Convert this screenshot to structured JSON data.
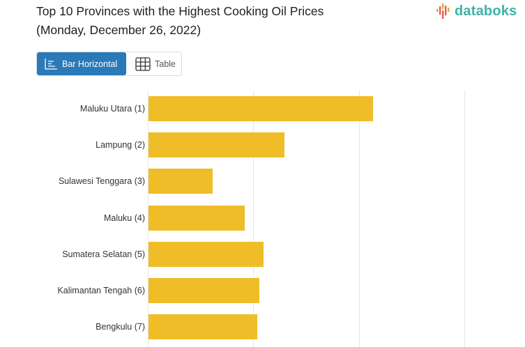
{
  "header": {
    "title_line1": "Top 10 Provinces with the Highest Cooking Oil Prices",
    "title_line2": "(Monday, December 26, 2022)",
    "logo_text": "databoks",
    "logo_color": "#3fb1a8"
  },
  "toggle": {
    "bar_label": "Bar Horizontal",
    "table_label": "Table",
    "active": "bar",
    "active_color": "#2a7ab8"
  },
  "chart_data": {
    "type": "bar",
    "orientation": "horizontal",
    "title": "Top 10 Provinces with the Highest Cooking Oil Prices (Monday, December 26, 2022)",
    "categories": [
      "Maluku Utara (1)",
      "Lampung (2)",
      "Sulawesi Tenggara (3)",
      "Maluku (4)",
      "Sumatera Selatan (5)",
      "Kalimantan Tengah (6)",
      "Bengkulu (7)"
    ],
    "values": [
      2.13,
      1.29,
      0.61,
      0.91,
      1.09,
      1.05,
      1.03
    ],
    "value_units": "relative (gridline intervals; no axis tick labels shown)",
    "xlabel": "",
    "ylabel": "",
    "xlim": [
      0,
      3
    ],
    "gridlines_x": [
      0,
      1,
      2,
      3
    ],
    "grid": true,
    "bar_color": "#efbd28",
    "legend": null,
    "note": "Only 7 of 10 categories visible in the cropped view"
  }
}
